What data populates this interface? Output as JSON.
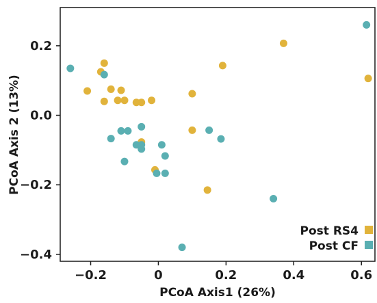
{
  "chart_data": {
    "type": "scatter",
    "title": "",
    "xlabel": "PCoA Axis1 (26%)",
    "ylabel": "PCoA Axis 2 (13%)",
    "xlim": [
      -0.29,
      0.64
    ],
    "ylim": [
      -0.42,
      0.31
    ],
    "xticks": [
      -0.2,
      0.0,
      0.2,
      0.4,
      0.6
    ],
    "xtick_labels": [
      "−0.2",
      "0",
      "0.2",
      "0.4",
      "0.6"
    ],
    "yticks": [
      0.2,
      0.0,
      -0.2,
      -0.4
    ],
    "ytick_labels": [
      "0.2",
      "0.0",
      "−0.2",
      "−0.4"
    ],
    "grid": false,
    "legend_position": "bottom-right",
    "series": [
      {
        "name": "Post RS4",
        "color": "#E1B33B",
        "points": [
          [
            -0.16,
            0.15
          ],
          [
            -0.17,
            0.125
          ],
          [
            -0.21,
            0.07
          ],
          [
            -0.14,
            0.075
          ],
          [
            -0.11,
            0.072
          ],
          [
            -0.16,
            0.04
          ],
          [
            -0.12,
            0.043
          ],
          [
            -0.1,
            0.043
          ],
          [
            -0.065,
            0.037
          ],
          [
            -0.05,
            0.037
          ],
          [
            -0.02,
            0.043
          ],
          [
            0.1,
            0.062
          ],
          [
            0.19,
            0.143
          ],
          [
            0.37,
            0.207
          ],
          [
            0.62,
            0.106
          ],
          [
            0.1,
            -0.043
          ],
          [
            -0.05,
            -0.077
          ],
          [
            -0.01,
            -0.157
          ],
          [
            0.145,
            -0.215
          ]
        ]
      },
      {
        "name": "Post CF",
        "color": "#5AAFB2",
        "points": [
          [
            -0.26,
            0.135
          ],
          [
            -0.16,
            0.117
          ],
          [
            -0.05,
            -0.033
          ],
          [
            -0.11,
            -0.045
          ],
          [
            -0.09,
            -0.045
          ],
          [
            -0.14,
            -0.067
          ],
          [
            -0.065,
            -0.085
          ],
          [
            -0.05,
            -0.085
          ],
          [
            -0.05,
            -0.097
          ],
          [
            0.01,
            -0.085
          ],
          [
            0.02,
            -0.117
          ],
          [
            -0.1,
            -0.133
          ],
          [
            -0.005,
            -0.167
          ],
          [
            0.02,
            -0.167
          ],
          [
            0.15,
            -0.043
          ],
          [
            0.185,
            -0.068
          ],
          [
            0.34,
            -0.24
          ],
          [
            0.07,
            -0.38
          ],
          [
            0.615,
            0.26
          ]
        ]
      }
    ]
  }
}
